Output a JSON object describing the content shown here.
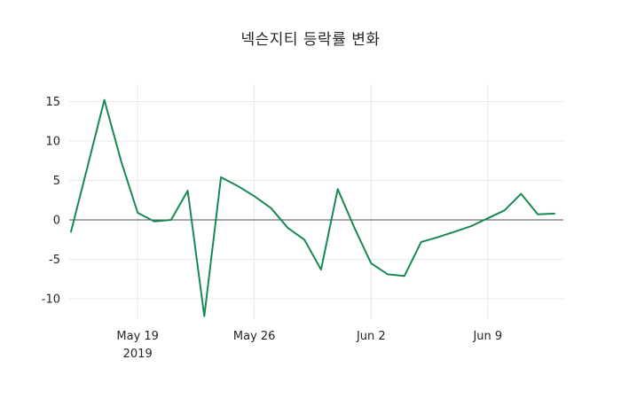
{
  "chart_data": {
    "type": "line",
    "title": "넥슨지티 등락률 변화",
    "series_name": "등락률",
    "x_dates": [
      "2019-05-15",
      "2019-05-16",
      "2019-05-17",
      "2019-05-18",
      "2019-05-19",
      "2019-05-20",
      "2019-05-21",
      "2019-05-22",
      "2019-05-23",
      "2019-05-24",
      "2019-05-25",
      "2019-05-26",
      "2019-05-27",
      "2019-05-28",
      "2019-05-29",
      "2019-05-30",
      "2019-05-31",
      "2019-06-01",
      "2019-06-02",
      "2019-06-03",
      "2019-06-04",
      "2019-06-05",
      "2019-06-06",
      "2019-06-07",
      "2019-06-08",
      "2019-06-09",
      "2019-06-10",
      "2019-06-11",
      "2019-06-12",
      "2019-06-13"
    ],
    "values": [
      -1.5,
      6.8,
      15.2,
      7.5,
      0.9,
      -0.2,
      0.0,
      3.7,
      -12.2,
      5.4,
      4.3,
      3.0,
      1.5,
      -1.0,
      -2.5,
      -6.3,
      3.9,
      -1.0,
      -5.5,
      -6.9,
      -7.1,
      -2.8,
      -2.2,
      -1.5,
      -0.8,
      0.2,
      1.2,
      3.3,
      0.7,
      0.8
    ],
    "y_ticks": [
      15,
      10,
      5,
      0,
      -5,
      -10
    ],
    "x_ticks": [
      {
        "index": 4,
        "label": "May 19",
        "sublabel": "2019"
      },
      {
        "index": 11,
        "label": "May 26",
        "sublabel": ""
      },
      {
        "index": 18,
        "label": "Jun 2",
        "sublabel": ""
      },
      {
        "index": 25,
        "label": "Jun 9",
        "sublabel": ""
      }
    ],
    "ylim": [
      -13,
      17
    ],
    "grid": true,
    "legend_position": "none",
    "line_color": "#178a53",
    "grid_color": "#e8e8e8",
    "zero_line_color": "#4d4d4d",
    "tick_label_color": "#262626",
    "background_color": "#ffffff"
  }
}
